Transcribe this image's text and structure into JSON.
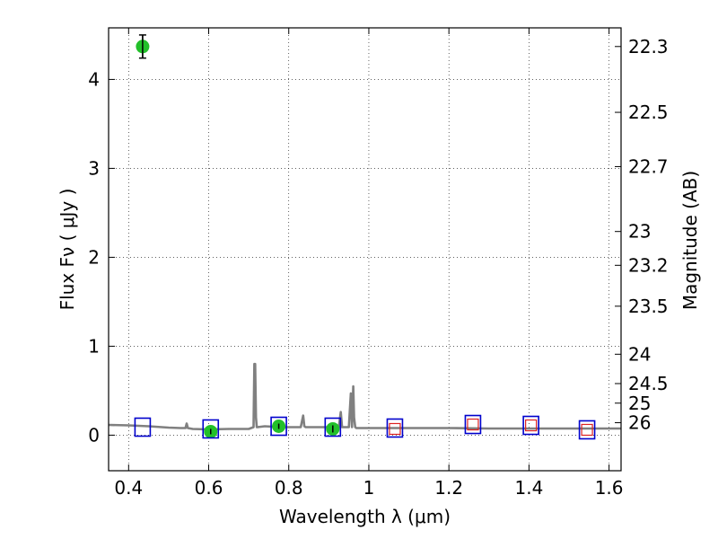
{
  "chart_data": {
    "type": "scatter",
    "xlabel": "Wavelength  λ (μm)",
    "ylabel": "Flux  Fν  ( μJy )",
    "y2label": "Magnitude (AB)",
    "xlim": [
      0.35,
      1.63
    ],
    "ylim": [
      -0.4,
      4.58
    ],
    "x_ticks": [
      0.4,
      0.6,
      0.8,
      1.0,
      1.2,
      1.4,
      1.6
    ],
    "x_tick_labels": [
      "0.4",
      "0.6",
      "0.8",
      "1",
      "1.2",
      "1.4",
      "1.6"
    ],
    "y_ticks": [
      0,
      1,
      2,
      3,
      4
    ],
    "y_tick_labels": [
      "0",
      "1",
      "2",
      "3",
      "4"
    ],
    "mag_ticks": [
      {
        "flux": 4.37,
        "label": "22.3"
      },
      {
        "flux": 3.63,
        "label": "22.5"
      },
      {
        "flux": 3.02,
        "label": "22.7"
      },
      {
        "flux": 2.29,
        "label": "23"
      },
      {
        "flux": 1.91,
        "label": "23.2"
      },
      {
        "flux": 1.45,
        "label": "23.5"
      },
      {
        "flux": 0.91,
        "label": "24"
      },
      {
        "flux": 0.58,
        "label": "24.5"
      },
      {
        "flux": 0.36,
        "label": "25"
      },
      {
        "flux": 0.14,
        "label": "26"
      }
    ],
    "grid": true,
    "model_spectrum": {
      "color": "#808080",
      "x": [
        0.35,
        0.4,
        0.45,
        0.5,
        0.53,
        0.542,
        0.545,
        0.548,
        0.56,
        0.6,
        0.65,
        0.7,
        0.712,
        0.714,
        0.716,
        0.718,
        0.72,
        0.722,
        0.74,
        0.78,
        0.83,
        0.836,
        0.839,
        0.842,
        0.88,
        0.925,
        0.93,
        0.933,
        0.938,
        0.95,
        0.955,
        0.958,
        0.961,
        0.963,
        0.966,
        0.969,
        0.972,
        1.0,
        1.1,
        1.2,
        1.3,
        1.4,
        1.5,
        1.63
      ],
      "y": [
        0.115,
        0.11,
        0.1,
        0.085,
        0.08,
        0.08,
        0.13,
        0.08,
        0.07,
        0.065,
        0.07,
        0.07,
        0.09,
        0.8,
        0.8,
        0.2,
        0.09,
        0.09,
        0.1,
        0.09,
        0.09,
        0.22,
        0.1,
        0.09,
        0.09,
        0.09,
        0.26,
        0.09,
        0.09,
        0.09,
        0.47,
        0.09,
        0.55,
        0.2,
        0.09,
        0.08,
        0.08,
        0.08,
        0.08,
        0.08,
        0.075,
        0.075,
        0.075,
        0.075
      ]
    },
    "series": [
      {
        "name": "",
        "marker": "circle",
        "color": "#22c02a",
        "x": [
          0.435,
          0.605,
          0.775,
          0.91
        ],
        "y": [
          4.37,
          0.04,
          0.1,
          0.07
        ],
        "yerr": [
          0.13,
          0.03,
          0.03,
          0.04
        ]
      },
      {
        "name": "",
        "marker": "square-large",
        "color": "#0000cc",
        "x": [
          0.435,
          0.605,
          0.775,
          0.91,
          1.065,
          1.26,
          1.405,
          1.545
        ],
        "y": [
          0.09,
          0.07,
          0.1,
          0.09,
          0.08,
          0.12,
          0.11,
          0.06
        ]
      },
      {
        "name": "",
        "marker": "square-small",
        "color": "#dd2222",
        "x": [
          1.065,
          1.26,
          1.405,
          1.545
        ],
        "y": [
          0.07,
          0.12,
          0.11,
          0.06
        ]
      }
    ]
  }
}
